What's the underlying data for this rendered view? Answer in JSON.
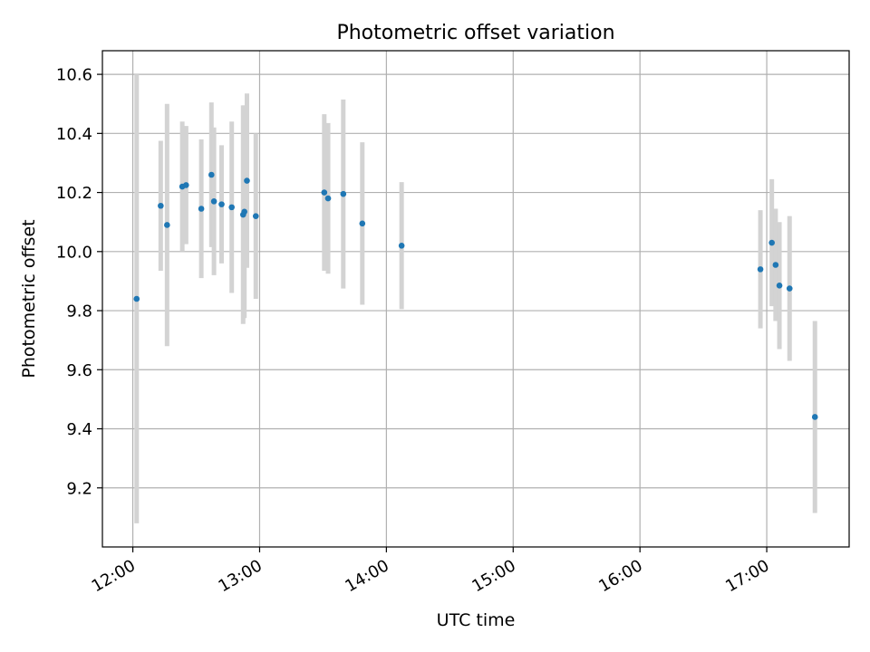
{
  "chart_data": {
    "type": "scatter",
    "title": "Photometric offset variation",
    "xlabel": "UTC time",
    "ylabel": "Photometric offset",
    "x_unit": "UTC hours of day",
    "xlim": [
      11.76,
      17.65
    ],
    "ylim": [
      9.0,
      10.68
    ],
    "x_ticks": [
      {
        "value": 12,
        "label": "12:00"
      },
      {
        "value": 13,
        "label": "13:00"
      },
      {
        "value": 14,
        "label": "14:00"
      },
      {
        "value": 15,
        "label": "15:00"
      },
      {
        "value": 16,
        "label": "16:00"
      },
      {
        "value": 17,
        "label": "17:00"
      }
    ],
    "y_ticks": [
      {
        "value": 9.2,
        "label": "9.2"
      },
      {
        "value": 9.4,
        "label": "9.4"
      },
      {
        "value": 9.6,
        "label": "9.6"
      },
      {
        "value": 9.8,
        "label": "9.8"
      },
      {
        "value": 10.0,
        "label": "10.0"
      },
      {
        "value": 10.2,
        "label": "10.2"
      },
      {
        "value": 10.4,
        "label": "10.4"
      },
      {
        "value": 10.6,
        "label": "10.6"
      }
    ],
    "grid": true,
    "x_tick_rotation_deg": 30,
    "colors": {
      "point": "#1f77b4",
      "errorbar": "#d3d3d3",
      "grid": "#b0b0b0"
    },
    "series": [
      {
        "points": [
          {
            "x": 12.03,
            "y": 9.84,
            "err": 0.76
          },
          {
            "x": 12.22,
            "y": 10.155,
            "err": 0.22
          },
          {
            "x": 12.27,
            "y": 10.09,
            "err": 0.41
          },
          {
            "x": 12.39,
            "y": 10.22,
            "err": 0.22
          },
          {
            "x": 12.42,
            "y": 10.225,
            "err": 0.2
          },
          {
            "x": 12.54,
            "y": 10.145,
            "err": 0.235
          },
          {
            "x": 12.62,
            "y": 10.26,
            "err": 0.245
          },
          {
            "x": 12.64,
            "y": 10.17,
            "err": 0.25
          },
          {
            "x": 12.7,
            "y": 10.16,
            "err": 0.2
          },
          {
            "x": 12.78,
            "y": 10.15,
            "err": 0.29
          },
          {
            "x": 12.87,
            "y": 10.125,
            "err": 0.37
          },
          {
            "x": 12.88,
            "y": 10.135,
            "err": 0.36
          },
          {
            "x": 12.9,
            "y": 10.24,
            "err": 0.295
          },
          {
            "x": 12.97,
            "y": 10.12,
            "err": 0.28
          },
          {
            "x": 13.51,
            "y": 10.2,
            "err": 0.265
          },
          {
            "x": 13.54,
            "y": 10.18,
            "err": 0.255
          },
          {
            "x": 13.66,
            "y": 10.195,
            "err": 0.32
          },
          {
            "x": 13.81,
            "y": 10.095,
            "err": 0.275
          },
          {
            "x": 14.12,
            "y": 10.02,
            "err": 0.215
          },
          {
            "x": 16.95,
            "y": 9.94,
            "err": 0.2
          },
          {
            "x": 17.04,
            "y": 10.03,
            "err": 0.215
          },
          {
            "x": 17.07,
            "y": 9.955,
            "err": 0.19
          },
          {
            "x": 17.1,
            "y": 9.885,
            "err": 0.215
          },
          {
            "x": 17.18,
            "y": 9.875,
            "err": 0.245
          },
          {
            "x": 17.38,
            "y": 9.44,
            "err": 0.325
          }
        ]
      }
    ]
  }
}
